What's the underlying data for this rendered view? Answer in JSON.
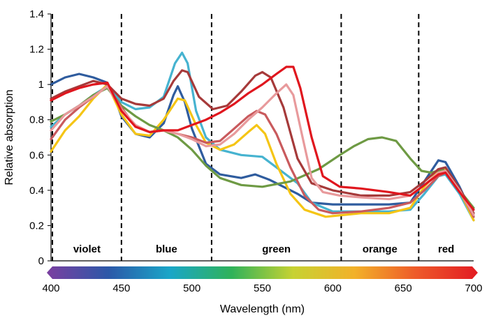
{
  "chart_data": {
    "type": "line",
    "title": "",
    "xlabel": "Wavelength (nm)",
    "ylabel": "Relative absorption",
    "xlim": [
      400,
      700
    ],
    "ylim": [
      0,
      1.4
    ],
    "x_ticks": [
      400,
      450,
      500,
      550,
      600,
      650,
      700
    ],
    "y_ticks": [
      0,
      0.2,
      0.4,
      0.6,
      0.8,
      1,
      1.2,
      1.4
    ],
    "x_tick_labels": [
      "400",
      "450",
      "500",
      "550",
      "600",
      "650",
      "700"
    ],
    "y_tick_labels": [
      "0",
      "0.2",
      "0.4",
      "0.6",
      "0.8",
      "1",
      "1.2",
      "1.4"
    ],
    "grid": false,
    "legend": "none",
    "color_bands": [
      {
        "label": "violet",
        "start": 401,
        "end": 450
      },
      {
        "label": "blue",
        "start": 450,
        "end": 514
      },
      {
        "label": "green",
        "start": 514,
        "end": 606
      },
      {
        "label": "orange",
        "start": 606,
        "end": 661
      },
      {
        "label": "red",
        "start": 661,
        "end": 700
      }
    ],
    "spectrum_bar": {
      "start": 400,
      "end": 700,
      "colors": [
        "#7b3fa0",
        "#2c58a8",
        "#1aa6c8",
        "#2fb25a",
        "#c7d232",
        "#f2b12a",
        "#ee5a2a",
        "#e21b22"
      ]
    },
    "series": [
      {
        "color": "#2f5c9e",
        "points": [
          [
            400,
            1.0
          ],
          [
            410,
            1.04
          ],
          [
            420,
            1.06
          ],
          [
            430,
            1.04
          ],
          [
            440,
            1.01
          ],
          [
            445,
            0.93
          ],
          [
            450,
            0.82
          ],
          [
            460,
            0.72
          ],
          [
            470,
            0.7
          ],
          [
            480,
            0.78
          ],
          [
            487,
            0.94
          ],
          [
            490,
            0.99
          ],
          [
            495,
            0.9
          ],
          [
            500,
            0.75
          ],
          [
            510,
            0.55
          ],
          [
            520,
            0.49
          ],
          [
            535,
            0.47
          ],
          [
            545,
            0.49
          ],
          [
            555,
            0.46
          ],
          [
            565,
            0.42
          ],
          [
            575,
            0.38
          ],
          [
            585,
            0.33
          ],
          [
            600,
            0.32
          ],
          [
            620,
            0.32
          ],
          [
            640,
            0.32
          ],
          [
            655,
            0.33
          ],
          [
            665,
            0.45
          ],
          [
            675,
            0.57
          ],
          [
            680,
            0.56
          ],
          [
            690,
            0.42
          ],
          [
            700,
            0.25
          ]
        ]
      },
      {
        "color": "#46b3d0",
        "points": [
          [
            400,
            0.76
          ],
          [
            410,
            0.83
          ],
          [
            420,
            0.88
          ],
          [
            430,
            0.94
          ],
          [
            440,
            0.99
          ],
          [
            450,
            0.9
          ],
          [
            460,
            0.86
          ],
          [
            470,
            0.87
          ],
          [
            480,
            0.93
          ],
          [
            488,
            1.12
          ],
          [
            493,
            1.18
          ],
          [
            497,
            1.12
          ],
          [
            503,
            0.85
          ],
          [
            510,
            0.7
          ],
          [
            520,
            0.63
          ],
          [
            535,
            0.6
          ],
          [
            550,
            0.59
          ],
          [
            560,
            0.53
          ],
          [
            575,
            0.44
          ],
          [
            585,
            0.33
          ],
          [
            600,
            0.28
          ],
          [
            620,
            0.28
          ],
          [
            640,
            0.28
          ],
          [
            655,
            0.29
          ],
          [
            665,
            0.38
          ],
          [
            675,
            0.48
          ],
          [
            680,
            0.49
          ],
          [
            690,
            0.38
          ],
          [
            700,
            0.23
          ]
        ]
      },
      {
        "color": "#f5c515",
        "points": [
          [
            400,
            0.62
          ],
          [
            410,
            0.74
          ],
          [
            420,
            0.82
          ],
          [
            430,
            0.92
          ],
          [
            440,
            1.0
          ],
          [
            450,
            0.83
          ],
          [
            460,
            0.72
          ],
          [
            470,
            0.71
          ],
          [
            480,
            0.8
          ],
          [
            490,
            0.92
          ],
          [
            495,
            0.91
          ],
          [
            503,
            0.77
          ],
          [
            510,
            0.67
          ],
          [
            520,
            0.63
          ],
          [
            530,
            0.66
          ],
          [
            540,
            0.73
          ],
          [
            546,
            0.77
          ],
          [
            552,
            0.72
          ],
          [
            560,
            0.55
          ],
          [
            570,
            0.38
          ],
          [
            580,
            0.29
          ],
          [
            595,
            0.25
          ],
          [
            620,
            0.27
          ],
          [
            640,
            0.27
          ],
          [
            655,
            0.3
          ],
          [
            665,
            0.42
          ],
          [
            675,
            0.51
          ],
          [
            680,
            0.52
          ],
          [
            690,
            0.4
          ],
          [
            700,
            0.23
          ]
        ]
      },
      {
        "color": "#6e9a44",
        "points": [
          [
            400,
            0.79
          ],
          [
            410,
            0.83
          ],
          [
            420,
            0.88
          ],
          [
            430,
            0.94
          ],
          [
            440,
            0.98
          ],
          [
            450,
            0.88
          ],
          [
            460,
            0.82
          ],
          [
            470,
            0.77
          ],
          [
            480,
            0.74
          ],
          [
            490,
            0.7
          ],
          [
            500,
            0.63
          ],
          [
            510,
            0.54
          ],
          [
            520,
            0.47
          ],
          [
            535,
            0.43
          ],
          [
            550,
            0.42
          ],
          [
            570,
            0.45
          ],
          [
            590,
            0.52
          ],
          [
            605,
            0.6
          ],
          [
            615,
            0.65
          ],
          [
            625,
            0.69
          ],
          [
            635,
            0.7
          ],
          [
            645,
            0.68
          ],
          [
            655,
            0.58
          ],
          [
            663,
            0.51
          ],
          [
            670,
            0.5
          ],
          [
            678,
            0.52
          ],
          [
            685,
            0.46
          ],
          [
            692,
            0.38
          ],
          [
            700,
            0.3
          ]
        ]
      },
      {
        "color": "#a63a3a",
        "points": [
          [
            400,
            0.92
          ],
          [
            410,
            0.96
          ],
          [
            420,
            0.99
          ],
          [
            430,
            1.02
          ],
          [
            440,
            1.0
          ],
          [
            450,
            0.92
          ],
          [
            460,
            0.89
          ],
          [
            470,
            0.88
          ],
          [
            480,
            0.92
          ],
          [
            487,
            1.02
          ],
          [
            493,
            1.08
          ],
          [
            497,
            1.07
          ],
          [
            505,
            0.93
          ],
          [
            515,
            0.86
          ],
          [
            525,
            0.88
          ],
          [
            535,
            0.96
          ],
          [
            545,
            1.05
          ],
          [
            550,
            1.07
          ],
          [
            556,
            1.04
          ],
          [
            565,
            0.87
          ],
          [
            575,
            0.58
          ],
          [
            585,
            0.44
          ],
          [
            600,
            0.4
          ],
          [
            620,
            0.37
          ],
          [
            640,
            0.37
          ],
          [
            655,
            0.39
          ],
          [
            665,
            0.45
          ],
          [
            675,
            0.52
          ],
          [
            680,
            0.53
          ],
          [
            690,
            0.41
          ],
          [
            700,
            0.27
          ]
        ]
      },
      {
        "color": "#c95a5d",
        "points": [
          [
            400,
            0.69
          ],
          [
            410,
            0.8
          ],
          [
            420,
            0.87
          ],
          [
            430,
            0.93
          ],
          [
            440,
            0.99
          ],
          [
            450,
            0.87
          ],
          [
            460,
            0.76
          ],
          [
            470,
            0.73
          ],
          [
            480,
            0.74
          ],
          [
            490,
            0.72
          ],
          [
            500,
            0.7
          ],
          [
            510,
            0.67
          ],
          [
            520,
            0.68
          ],
          [
            530,
            0.75
          ],
          [
            540,
            0.82
          ],
          [
            546,
            0.85
          ],
          [
            552,
            0.83
          ],
          [
            560,
            0.72
          ],
          [
            570,
            0.53
          ],
          [
            580,
            0.37
          ],
          [
            590,
            0.29
          ],
          [
            600,
            0.27
          ],
          [
            620,
            0.28
          ],
          [
            640,
            0.3
          ],
          [
            655,
            0.33
          ],
          [
            665,
            0.4
          ],
          [
            675,
            0.48
          ],
          [
            680,
            0.5
          ],
          [
            690,
            0.4
          ],
          [
            700,
            0.25
          ]
        ]
      },
      {
        "color": "#e89a9c",
        "points": [
          [
            400,
            0.74
          ],
          [
            410,
            0.83
          ],
          [
            420,
            0.88
          ],
          [
            430,
            0.93
          ],
          [
            440,
            0.99
          ],
          [
            450,
            0.86
          ],
          [
            460,
            0.77
          ],
          [
            470,
            0.73
          ],
          [
            480,
            0.74
          ],
          [
            490,
            0.72
          ],
          [
            500,
            0.69
          ],
          [
            510,
            0.65
          ],
          [
            520,
            0.66
          ],
          [
            530,
            0.72
          ],
          [
            540,
            0.8
          ],
          [
            550,
            0.87
          ],
          [
            560,
            0.95
          ],
          [
            567,
            1.0
          ],
          [
            572,
            0.94
          ],
          [
            578,
            0.72
          ],
          [
            585,
            0.47
          ],
          [
            593,
            0.39
          ],
          [
            605,
            0.37
          ],
          [
            620,
            0.36
          ],
          [
            640,
            0.35
          ],
          [
            655,
            0.37
          ],
          [
            665,
            0.43
          ],
          [
            675,
            0.5
          ],
          [
            680,
            0.51
          ],
          [
            690,
            0.4
          ],
          [
            700,
            0.26
          ]
        ]
      },
      {
        "color": "#e0161e",
        "points": [
          [
            400,
            0.91
          ],
          [
            410,
            0.95
          ],
          [
            420,
            0.98
          ],
          [
            430,
            1.0
          ],
          [
            440,
            1.01
          ],
          [
            450,
            0.85
          ],
          [
            460,
            0.76
          ],
          [
            470,
            0.73
          ],
          [
            480,
            0.74
          ],
          [
            490,
            0.74
          ],
          [
            500,
            0.77
          ],
          [
            510,
            0.8
          ],
          [
            520,
            0.84
          ],
          [
            530,
            0.89
          ],
          [
            540,
            0.95
          ],
          [
            550,
            1.0
          ],
          [
            560,
            1.06
          ],
          [
            567,
            1.1
          ],
          [
            572,
            1.1
          ],
          [
            577,
            0.98
          ],
          [
            585,
            0.7
          ],
          [
            593,
            0.48
          ],
          [
            605,
            0.42
          ],
          [
            620,
            0.41
          ],
          [
            640,
            0.39
          ],
          [
            655,
            0.37
          ],
          [
            665,
            0.43
          ],
          [
            675,
            0.49
          ],
          [
            680,
            0.5
          ],
          [
            690,
            0.39
          ],
          [
            700,
            0.29
          ]
        ]
      }
    ]
  }
}
